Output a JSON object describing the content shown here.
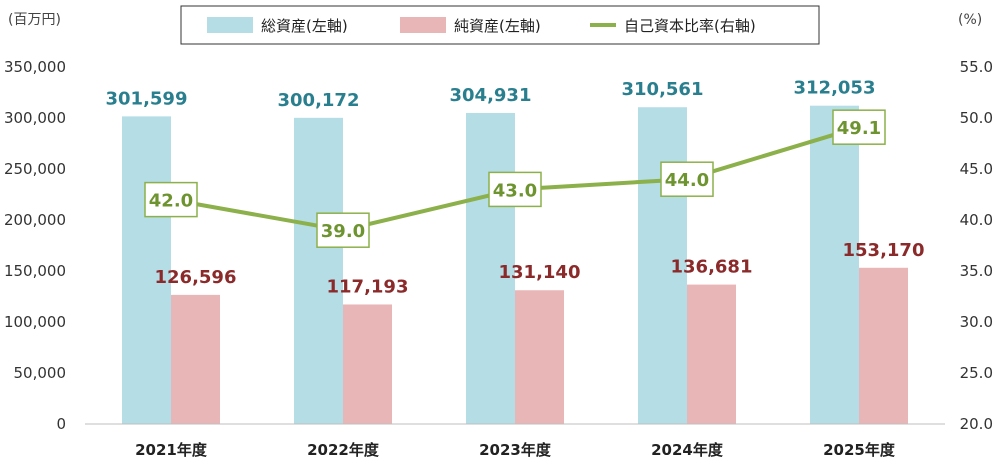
{
  "chart_data": {
    "type": "bar",
    "categories": [
      "2021年度",
      "2022年度",
      "2023年度",
      "2024年度",
      "2025年度"
    ],
    "series": [
      {
        "name": "総資産(左軸)",
        "kind": "bar",
        "axis": "left",
        "color": "#b4dde6",
        "label_color": "#2a7f8f",
        "values": [
          301599,
          300172,
          304931,
          310561,
          312053
        ],
        "labels": [
          "301,599",
          "300,172",
          "304,931",
          "310,561",
          "312,053"
        ]
      },
      {
        "name": "純資産(左軸)",
        "kind": "bar",
        "axis": "left",
        "color": "#e8b6b7",
        "label_color": "#8b2a2a",
        "values": [
          126596,
          117193,
          131140,
          136681,
          153170
        ],
        "labels": [
          "126,596",
          "117,193",
          "131,140",
          "136,681",
          "153,170"
        ]
      },
      {
        "name": "自己資本比率(右軸)",
        "kind": "line",
        "axis": "right",
        "color": "#8cb04a",
        "label_color": "#6e9430",
        "values": [
          42.0,
          39.0,
          43.0,
          44.0,
          49.1
        ],
        "labels": [
          "42.0",
          "39.0",
          "43.0",
          "44.0",
          "49.1"
        ]
      }
    ],
    "left_axis": {
      "unit": "(百万円)",
      "ylim": [
        0,
        350000
      ],
      "ticks": [
        0,
        50000,
        100000,
        150000,
        200000,
        250000,
        300000,
        350000
      ],
      "tick_labels": [
        "0",
        "50,000",
        "100,000",
        "150,000",
        "200,000",
        "250,000",
        "300,000",
        "350,000"
      ]
    },
    "right_axis": {
      "unit": "(%)",
      "ylim": [
        20,
        55
      ],
      "ticks": [
        20,
        25,
        30,
        35,
        40,
        45,
        50,
        55
      ],
      "tick_labels": [
        "20.0",
        "25.0",
        "30.0",
        "35.0",
        "40.0",
        "45.0",
        "50.0",
        "55.0"
      ]
    },
    "grid": false,
    "legend": "top-center"
  }
}
